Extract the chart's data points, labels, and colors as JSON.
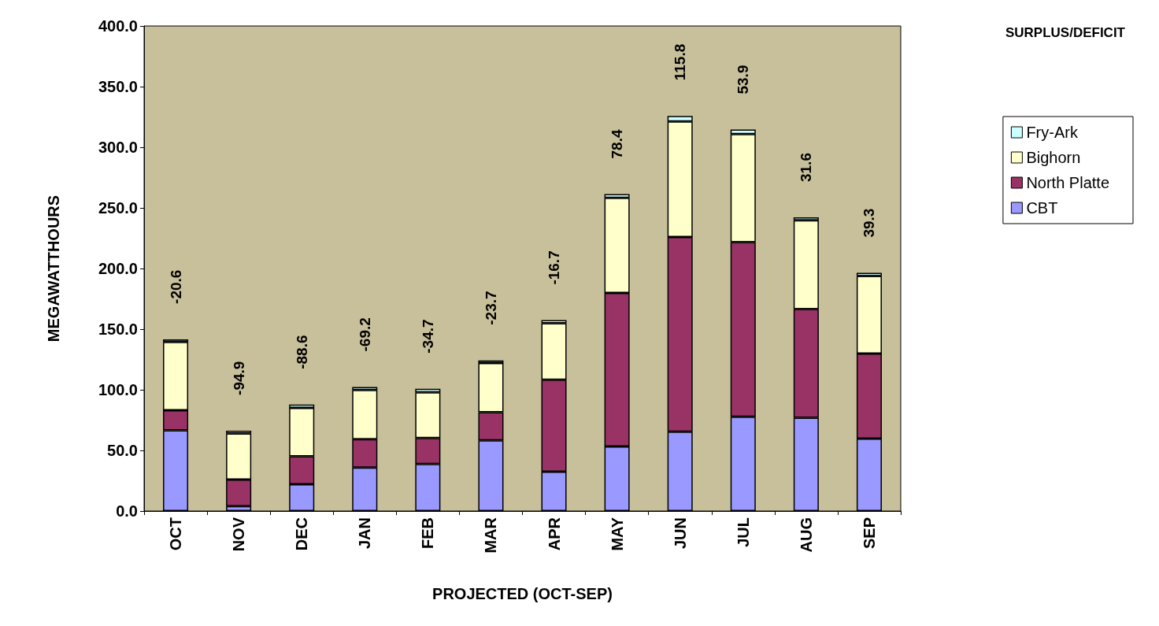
{
  "chart_data": {
    "type": "bar",
    "stacked": true,
    "xlabel": "PROJECTED (OCT-SEP)",
    "ylabel": "MEGAWATTHOURS",
    "categories": [
      "OCT",
      "NOV",
      "DEC",
      "JAN",
      "FEB",
      "MAR",
      "APR",
      "MAY",
      "JUN",
      "JUL",
      "AUG",
      "SEP"
    ],
    "series": [
      {
        "name": "CBT",
        "color": "#9999ff",
        "values": [
          66.6,
          4.0,
          22.0,
          35.9,
          38.8,
          58.2,
          32.5,
          53.2,
          65.4,
          77.8,
          77.0,
          59.7
        ]
      },
      {
        "name": "North Platte",
        "color": "#993366",
        "values": [
          16.5,
          21.9,
          23.1,
          23.4,
          21.5,
          23.3,
          75.7,
          126.7,
          160.5,
          143.9,
          89.5,
          70.2
        ]
      },
      {
        "name": "Bighorn",
        "color": "#ffffcc",
        "values": [
          56.3,
          38.0,
          39.9,
          40.5,
          37.6,
          40.5,
          46.7,
          78.3,
          95.4,
          89.2,
          73.2,
          64.0
        ]
      },
      {
        "name": "Fry-Ark",
        "color": "#ccffff",
        "values": [
          2.2,
          2.4,
          2.8,
          2.5,
          2.9,
          2.2,
          2.5,
          3.2,
          4.5,
          3.7,
          2.5,
          2.5
        ]
      }
    ],
    "ylim": [
      0,
      400
    ],
    "yticks": [
      {
        "value": 0,
        "label": "0.0"
      },
      {
        "value": 50,
        "label": "50.0"
      },
      {
        "value": 100,
        "label": "100.0"
      },
      {
        "value": 150,
        "label": "150.0"
      },
      {
        "value": 200,
        "label": "200.0"
      },
      {
        "value": 250,
        "label": "250.0"
      },
      {
        "value": 300,
        "label": "300.0"
      },
      {
        "value": 350,
        "label": "350.0"
      },
      {
        "value": 400,
        "label": "400.0"
      }
    ],
    "grid": false,
    "legend": "right",
    "annotations": [
      "SURPLUS/DEFICIT",
      "-20.6",
      "-94.9",
      "-88.6",
      "-69.2",
      "-34.7",
      "-23.7",
      "-16.7",
      "78.4",
      "115.8",
      "53.9",
      "31.6",
      "39.3"
    ]
  }
}
